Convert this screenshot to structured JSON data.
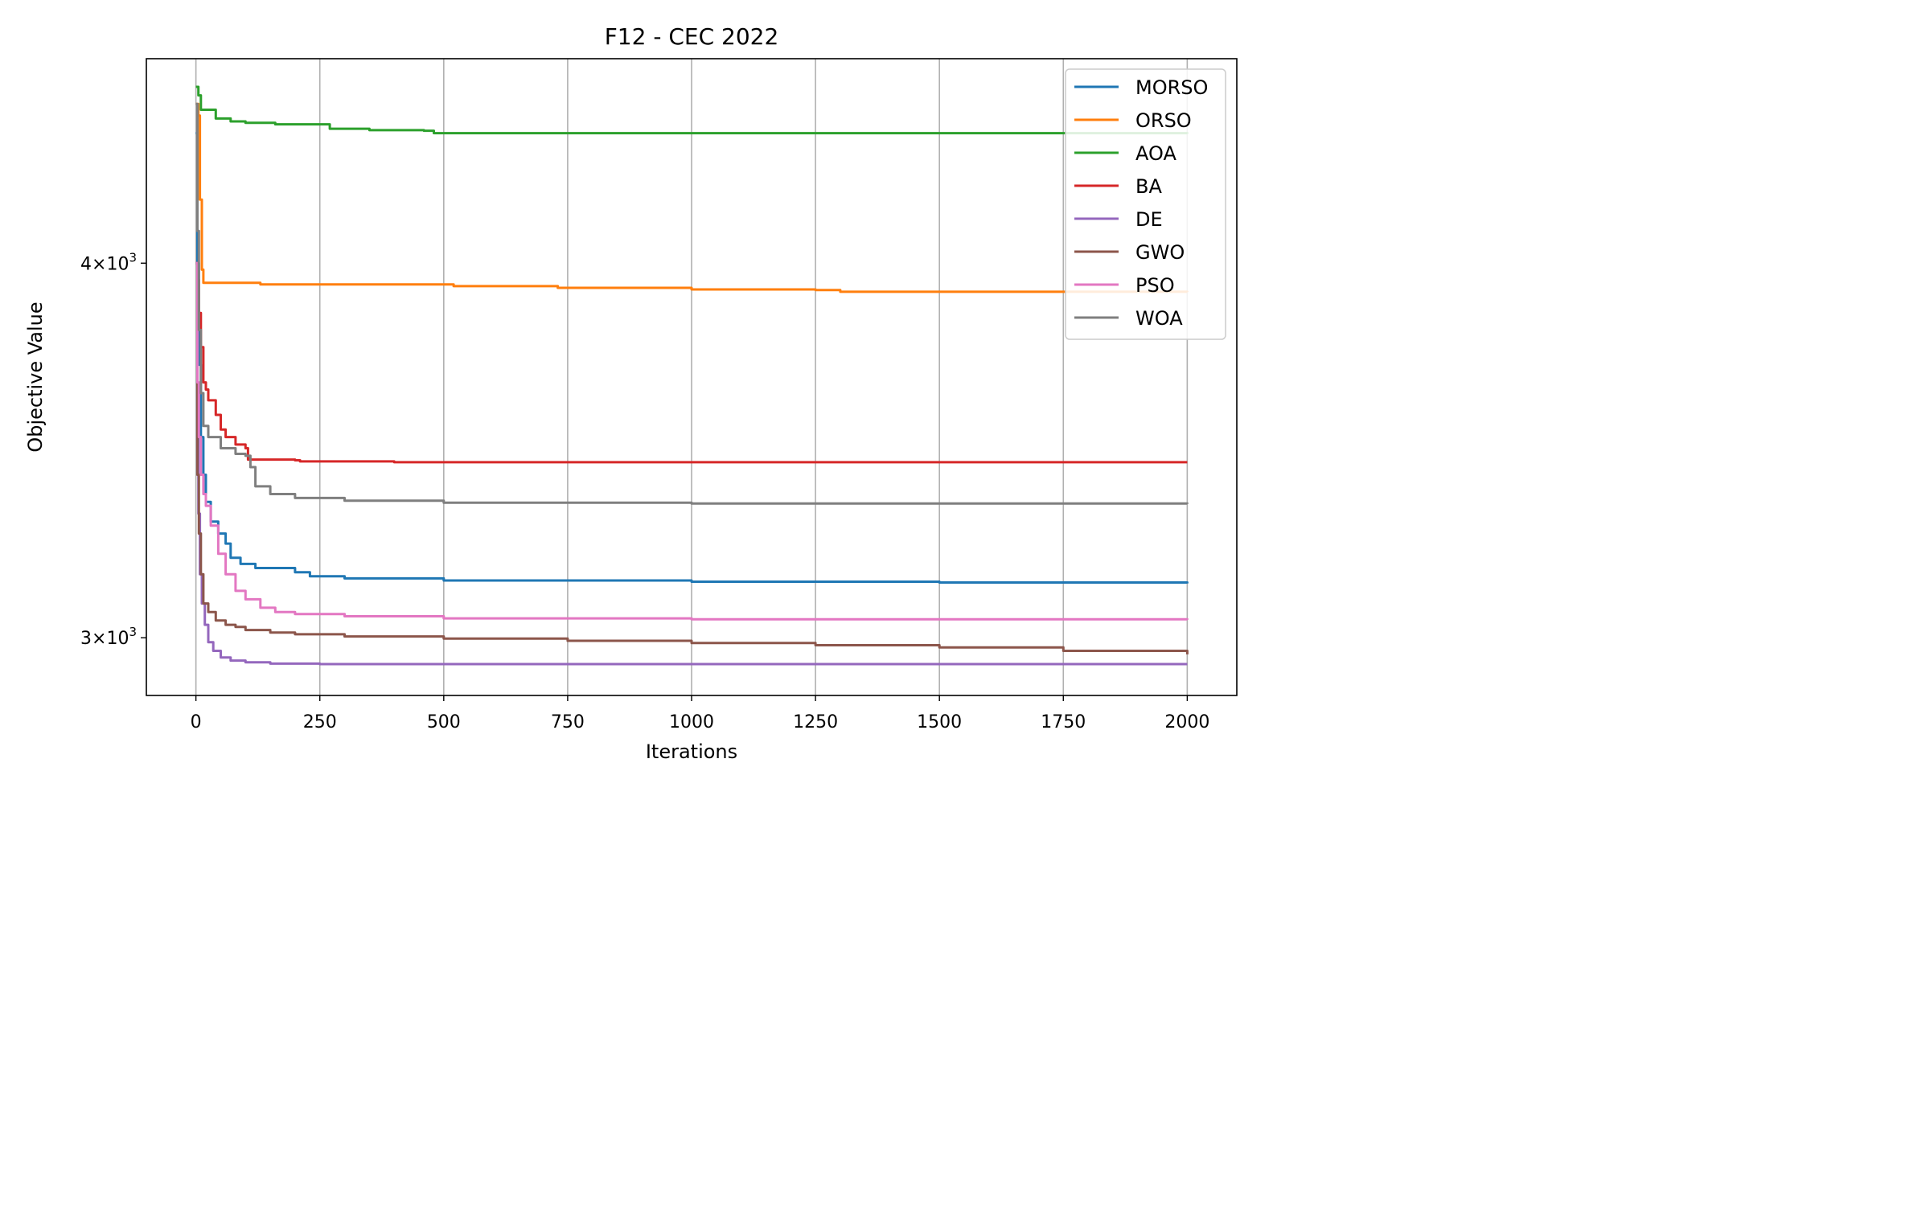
{
  "chart_data": {
    "type": "line",
    "title": "F12 - CEC 2022",
    "xlabel": "Iterations",
    "ylabel": "Objective Value",
    "yscale": "log",
    "xlim": [
      -100,
      2100
    ],
    "ylim": [
      2870,
      4680
    ],
    "x_ticks": [
      0,
      250,
      500,
      750,
      1000,
      1250,
      1500,
      1750,
      2000
    ],
    "x_tick_labels": [
      "0",
      "250",
      "500",
      "750",
      "1000",
      "1250",
      "1500",
      "1750",
      "2000"
    ],
    "y_ticks": [
      {
        "value": 3000,
        "mantissa": "3",
        "base": "10",
        "exp": "3"
      },
      {
        "value": 4000,
        "mantissa": "4",
        "base": "10",
        "exp": "3"
      }
    ],
    "grid": "vertical",
    "legend_position": "top-right",
    "series": [
      {
        "name": "MORSO",
        "color": "#1f77b4",
        "points": [
          [
            0,
            4420
          ],
          [
            3,
            4000
          ],
          [
            6,
            3700
          ],
          [
            10,
            3500
          ],
          [
            15,
            3400
          ],
          [
            20,
            3330
          ],
          [
            30,
            3280
          ],
          [
            45,
            3250
          ],
          [
            60,
            3225
          ],
          [
            70,
            3190
          ],
          [
            90,
            3175
          ],
          [
            120,
            3165
          ],
          [
            200,
            3155
          ],
          [
            230,
            3145
          ],
          [
            300,
            3140
          ],
          [
            500,
            3135
          ],
          [
            1000,
            3132
          ],
          [
            1500,
            3130
          ],
          [
            2000,
            3128
          ]
        ]
      },
      {
        "name": "ORSO",
        "color": "#ff7f0e",
        "points": [
          [
            0,
            4520
          ],
          [
            5,
            4480
          ],
          [
            8,
            4200
          ],
          [
            12,
            3980
          ],
          [
            15,
            3940
          ],
          [
            80,
            3940
          ],
          [
            130,
            3935
          ],
          [
            480,
            3935
          ],
          [
            520,
            3930
          ],
          [
            700,
            3930
          ],
          [
            730,
            3925
          ],
          [
            980,
            3925
          ],
          [
            1000,
            3920
          ],
          [
            1250,
            3918
          ],
          [
            1300,
            3913
          ],
          [
            2000,
            3912
          ]
        ]
      },
      {
        "name": "AOA",
        "color": "#2ca02c",
        "points": [
          [
            0,
            4580
          ],
          [
            5,
            4550
          ],
          [
            10,
            4500
          ],
          [
            30,
            4500
          ],
          [
            40,
            4470
          ],
          [
            70,
            4460
          ],
          [
            100,
            4455
          ],
          [
            160,
            4450
          ],
          [
            260,
            4450
          ],
          [
            270,
            4435
          ],
          [
            350,
            4430
          ],
          [
            460,
            4428
          ],
          [
            480,
            4420
          ],
          [
            2000,
            4418
          ]
        ]
      },
      {
        "name": "BA",
        "color": "#d62728",
        "points": [
          [
            0,
            4000
          ],
          [
            3,
            3950
          ],
          [
            6,
            3850
          ],
          [
            10,
            3750
          ],
          [
            15,
            3650
          ],
          [
            20,
            3630
          ],
          [
            25,
            3600
          ],
          [
            40,
            3560
          ],
          [
            50,
            3520
          ],
          [
            60,
            3500
          ],
          [
            80,
            3480
          ],
          [
            100,
            3470
          ],
          [
            105,
            3440
          ],
          [
            200,
            3438
          ],
          [
            210,
            3435
          ],
          [
            400,
            3433
          ],
          [
            2000,
            3433
          ]
        ]
      },
      {
        "name": "DE",
        "color": "#9467bd",
        "points": [
          [
            0,
            4000
          ],
          [
            3,
            3600
          ],
          [
            5,
            3300
          ],
          [
            8,
            3150
          ],
          [
            12,
            3080
          ],
          [
            18,
            3030
          ],
          [
            25,
            2990
          ],
          [
            35,
            2970
          ],
          [
            50,
            2955
          ],
          [
            70,
            2948
          ],
          [
            100,
            2944
          ],
          [
            150,
            2941
          ],
          [
            250,
            2940
          ],
          [
            2000,
            2940
          ]
        ]
      },
      {
        "name": "GWO",
        "color": "#8c564b",
        "points": [
          [
            0,
            4000
          ],
          [
            3,
            3400
          ],
          [
            6,
            3250
          ],
          [
            10,
            3150
          ],
          [
            15,
            3080
          ],
          [
            25,
            3060
          ],
          [
            40,
            3040
          ],
          [
            60,
            3030
          ],
          [
            80,
            3025
          ],
          [
            100,
            3018
          ],
          [
            150,
            3012
          ],
          [
            200,
            3008
          ],
          [
            300,
            3003
          ],
          [
            500,
            2998
          ],
          [
            750,
            2993
          ],
          [
            1000,
            2988
          ],
          [
            1250,
            2983
          ],
          [
            1500,
            2978
          ],
          [
            1750,
            2970
          ],
          [
            2000,
            2962
          ]
        ]
      },
      {
        "name": "PSO",
        "color": "#e377c2",
        "points": [
          [
            0,
            4000
          ],
          [
            3,
            3650
          ],
          [
            6,
            3500
          ],
          [
            10,
            3400
          ],
          [
            15,
            3350
          ],
          [
            20,
            3320
          ],
          [
            30,
            3270
          ],
          [
            45,
            3200
          ],
          [
            60,
            3150
          ],
          [
            80,
            3110
          ],
          [
            100,
            3090
          ],
          [
            130,
            3070
          ],
          [
            160,
            3060
          ],
          [
            200,
            3055
          ],
          [
            300,
            3050
          ],
          [
            500,
            3045
          ],
          [
            1000,
            3043
          ],
          [
            2000,
            3042
          ]
        ]
      },
      {
        "name": "WOA",
        "color": "#7f7f7f",
        "points": [
          [
            0,
            4520
          ],
          [
            3,
            4100
          ],
          [
            6,
            3800
          ],
          [
            10,
            3620
          ],
          [
            15,
            3530
          ],
          [
            25,
            3500
          ],
          [
            50,
            3470
          ],
          [
            80,
            3455
          ],
          [
            100,
            3450
          ],
          [
            110,
            3420
          ],
          [
            120,
            3370
          ],
          [
            150,
            3350
          ],
          [
            200,
            3340
          ],
          [
            300,
            3333
          ],
          [
            500,
            3328
          ],
          [
            1000,
            3326
          ],
          [
            2000,
            3325
          ]
        ]
      }
    ]
  }
}
